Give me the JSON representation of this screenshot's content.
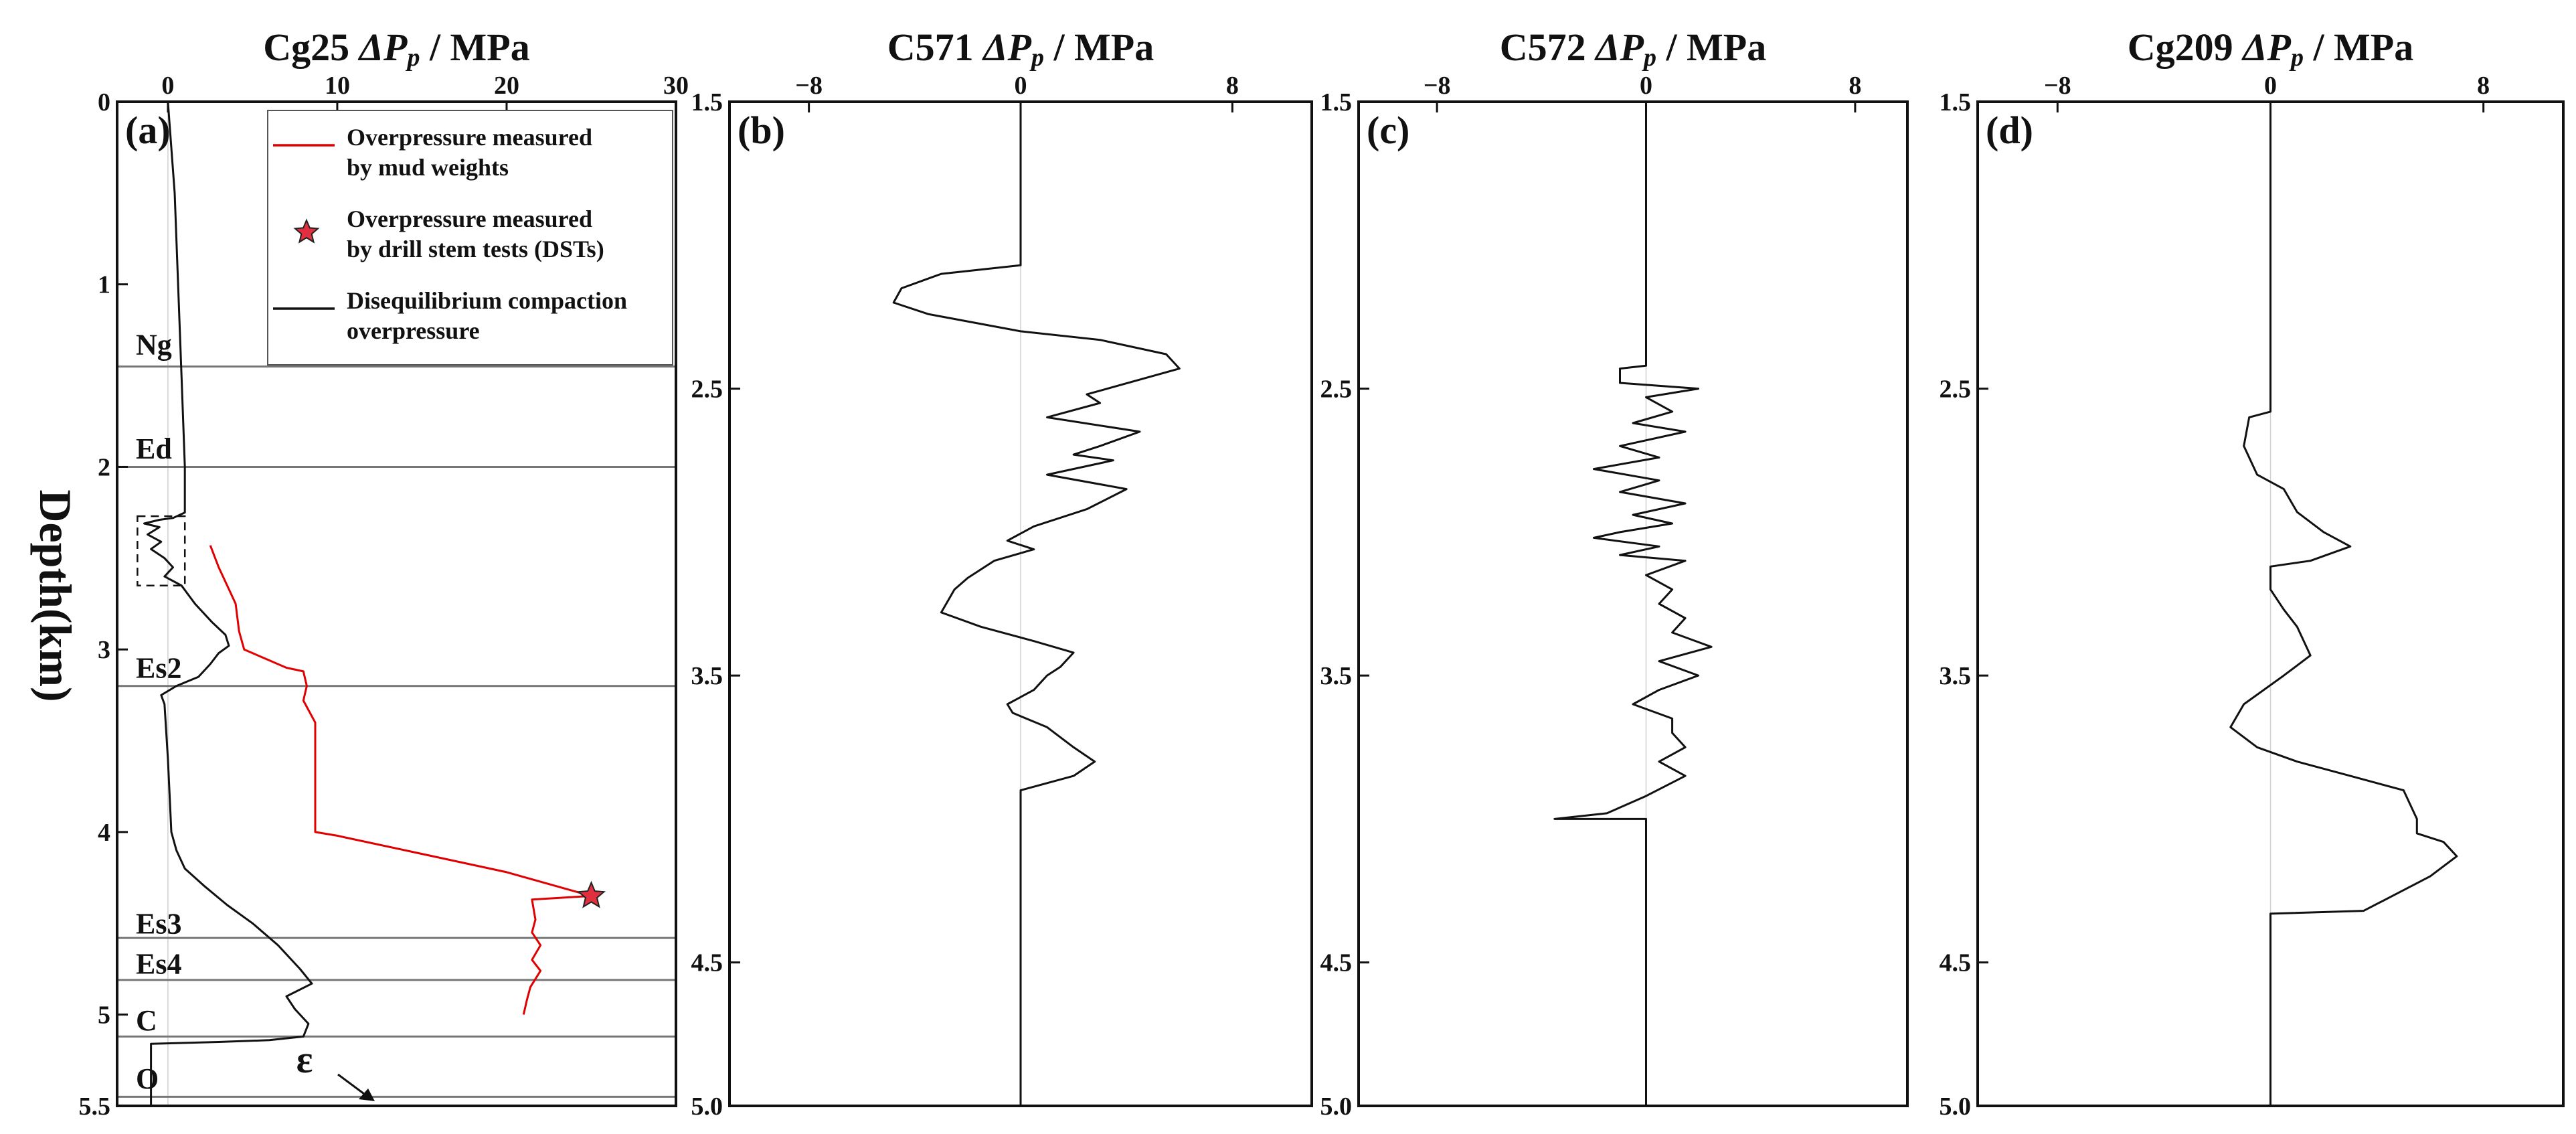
{
  "figure": {
    "ylabel_main": "Depth",
    "ylabel_unit": "(km)"
  },
  "chart_data": [
    {
      "type": "line",
      "panel_label": "(a)",
      "title_well": "Cg25",
      "title_symbol": "ΔP",
      "title_sub": "p",
      "title_unit": " / MPa",
      "x_ticks": [
        "0",
        "10",
        "20",
        "30"
      ],
      "xlim": [
        -3,
        30
      ],
      "y_ticks": [
        "0",
        "1",
        "2",
        "3",
        "4",
        "5",
        "5.5"
      ],
      "ylim": [
        0,
        5.5
      ],
      "legend": [
        {
          "label_line1": "Overpressure measured",
          "label_line2": "by mud weights",
          "color": "#e00000",
          "marker": "line"
        },
        {
          "label_line1": "Overpressure measured",
          "label_line2": "by drill stem tests (DSTs)",
          "color": "#e00000",
          "marker": "star"
        },
        {
          "label_line1": "Disequilibrium compaction",
          "label_line2": "overpressure",
          "color": "#111111",
          "marker": "line"
        }
      ],
      "formations": [
        {
          "name": "Ng",
          "boundary_depth": 1.45,
          "label_depth": 1.33
        },
        {
          "name": "Ed",
          "boundary_depth": 2.0,
          "label_depth": 1.9
        },
        {
          "name": "Es2",
          "boundary_depth": 3.2,
          "label_depth": 3.1
        },
        {
          "name": "Es3",
          "boundary_depth": 4.58,
          "label_depth": 4.5
        },
        {
          "name": "Es4",
          "boundary_depth": 4.81,
          "label_depth": 4.72
        },
        {
          "name": "C",
          "boundary_depth": 5.12,
          "label_depth": 5.03
        },
        {
          "name": "O",
          "boundary_depth": 5.45,
          "label_depth": 5.35
        }
      ],
      "annotation_symbol": "ε",
      "dashed_box": {
        "x_range": [
          -1.8,
          1.0
        ],
        "depth_range": [
          2.27,
          2.65
        ]
      },
      "series": [
        {
          "color": "#111111",
          "points": [
            [
              0,
              0
            ],
            [
              0.4,
              0.5
            ],
            [
              0.6,
              1.0
            ],
            [
              0.8,
              1.5
            ],
            [
              1.0,
              2.0
            ],
            [
              1.0,
              2.25
            ],
            [
              0.3,
              2.28
            ],
            [
              -0.5,
              2.29
            ],
            [
              -1.4,
              2.31
            ],
            [
              -0.5,
              2.33
            ],
            [
              -1.2,
              2.37
            ],
            [
              -0.4,
              2.41
            ],
            [
              -1.0,
              2.45
            ],
            [
              -0.2,
              2.5
            ],
            [
              0.3,
              2.55
            ],
            [
              -0.2,
              2.6
            ],
            [
              0.8,
              2.65
            ],
            [
              1.6,
              2.75
            ],
            [
              2.6,
              2.85
            ],
            [
              3.4,
              2.92
            ],
            [
              3.6,
              2.98
            ],
            [
              3.0,
              3.02
            ],
            [
              2.5,
              3.08
            ],
            [
              1.8,
              3.15
            ],
            [
              0.5,
              3.2
            ],
            [
              -0.4,
              3.25
            ],
            [
              -0.2,
              3.3
            ],
            [
              0,
              3.6
            ],
            [
              0.2,
              4.0
            ],
            [
              0.5,
              4.1
            ],
            [
              1.0,
              4.2
            ],
            [
              2.2,
              4.3
            ],
            [
              3.5,
              4.4
            ],
            [
              5.0,
              4.5
            ],
            [
              6.5,
              4.62
            ],
            [
              7.8,
              4.75
            ],
            [
              8.5,
              4.83
            ],
            [
              7.0,
              4.9
            ],
            [
              7.5,
              4.97
            ],
            [
              8.3,
              5.05
            ],
            [
              8.0,
              5.12
            ],
            [
              6.0,
              5.14
            ],
            [
              3.0,
              5.15
            ],
            [
              -1.0,
              5.16
            ],
            [
              -1.0,
              5.5
            ]
          ]
        },
        {
          "color": "#e00000",
          "points": [
            [
              2.5,
              2.43
            ],
            [
              3.0,
              2.55
            ],
            [
              3.5,
              2.65
            ],
            [
              4.0,
              2.75
            ],
            [
              4.2,
              2.9
            ],
            [
              4.5,
              3.0
            ],
            [
              7.0,
              3.1
            ],
            [
              8.0,
              3.12
            ],
            [
              8.2,
              3.2
            ],
            [
              8.0,
              3.28
            ],
            [
              8.7,
              3.4
            ],
            [
              8.7,
              3.7
            ],
            [
              8.7,
              4.0
            ],
            [
              10,
              4.02
            ],
            [
              15,
              4.12
            ],
            [
              20,
              4.22
            ],
            [
              25,
              4.35
            ],
            [
              21.5,
              4.37
            ],
            [
              21.7,
              4.48
            ],
            [
              21.5,
              4.55
            ],
            [
              22,
              4.62
            ],
            [
              21.5,
              4.7
            ],
            [
              22,
              4.76
            ],
            [
              21.4,
              4.85
            ],
            [
              21.2,
              4.92
            ],
            [
              21.0,
              5.0
            ]
          ]
        }
      ],
      "dst_points": [
        [
          25,
          4.35
        ]
      ]
    },
    {
      "type": "line",
      "panel_label": "(b)",
      "title_well": "C571",
      "title_symbol": "ΔP",
      "title_sub": "p",
      "title_unit": " / MPa",
      "x_ticks": [
        "−8",
        "0",
        "8"
      ],
      "xlim": [
        -11,
        11
      ],
      "y_ticks": [
        "1.5",
        "2.5",
        "3.5",
        "4.5",
        "5.0"
      ],
      "ylim": [
        1.5,
        5.0
      ],
      "series": [
        {
          "color": "#111111",
          "points": [
            [
              0,
              1.5
            ],
            [
              0,
              2.07
            ],
            [
              -3,
              2.1
            ],
            [
              -4.5,
              2.15
            ],
            [
              -4.8,
              2.2
            ],
            [
              -3.5,
              2.24
            ],
            [
              0,
              2.3
            ],
            [
              3.0,
              2.33
            ],
            [
              5.5,
              2.38
            ],
            [
              6.0,
              2.43
            ],
            [
              2.5,
              2.52
            ],
            [
              3.0,
              2.55
            ],
            [
              1.0,
              2.6
            ],
            [
              4.5,
              2.65
            ],
            [
              3.0,
              2.7
            ],
            [
              2.0,
              2.73
            ],
            [
              3.5,
              2.75
            ],
            [
              1.0,
              2.8
            ],
            [
              4.0,
              2.85
            ],
            [
              2.5,
              2.92
            ],
            [
              0.5,
              2.98
            ],
            [
              -0.5,
              3.03
            ],
            [
              0.5,
              3.06
            ],
            [
              -1.0,
              3.1
            ],
            [
              -2.0,
              3.16
            ],
            [
              -2.5,
              3.2
            ],
            [
              -3.0,
              3.28
            ],
            [
              -1.5,
              3.33
            ],
            [
              0.5,
              3.38
            ],
            [
              2.0,
              3.42
            ],
            [
              1.5,
              3.47
            ],
            [
              1.0,
              3.5
            ],
            [
              0.5,
              3.55
            ],
            [
              -0.5,
              3.6
            ],
            [
              -0.3,
              3.63
            ],
            [
              1.0,
              3.68
            ],
            [
              2.0,
              3.75
            ],
            [
              2.8,
              3.8
            ],
            [
              2.0,
              3.85
            ],
            [
              0,
              3.9
            ],
            [
              0,
              5.0
            ]
          ]
        }
      ]
    },
    {
      "type": "line",
      "panel_label": "(c)",
      "title_well": "C572",
      "title_symbol": "ΔP",
      "title_sub": "p",
      "title_unit": " / MPa",
      "x_ticks": [
        "−8",
        "0",
        "8"
      ],
      "xlim": [
        -11,
        10
      ],
      "y_ticks": [
        "1.5",
        "2.5",
        "3.5",
        "4.5",
        "5.0"
      ],
      "ylim": [
        1.5,
        5.0
      ],
      "series": [
        {
          "color": "#111111",
          "points": [
            [
              0,
              1.5
            ],
            [
              0,
              2.42
            ],
            [
              -1.0,
              2.43
            ],
            [
              -1.0,
              2.48
            ],
            [
              2.0,
              2.5
            ],
            [
              0,
              2.53
            ],
            [
              1.0,
              2.58
            ],
            [
              -0.5,
              2.62
            ],
            [
              1.5,
              2.65
            ],
            [
              -1.0,
              2.7
            ],
            [
              0.5,
              2.74
            ],
            [
              -2.0,
              2.78
            ],
            [
              0.5,
              2.82
            ],
            [
              -1.0,
              2.86
            ],
            [
              1.5,
              2.9
            ],
            [
              -0.5,
              2.94
            ],
            [
              1.0,
              2.97
            ],
            [
              -1.0,
              3.0
            ],
            [
              -2.0,
              3.02
            ],
            [
              0.5,
              3.05
            ],
            [
              -1.0,
              3.08
            ],
            [
              1.5,
              3.1
            ],
            [
              0,
              3.15
            ],
            [
              1.0,
              3.2
            ],
            [
              0.5,
              3.25
            ],
            [
              1.5,
              3.3
            ],
            [
              1.0,
              3.35
            ],
            [
              2.5,
              3.4
            ],
            [
              0.5,
              3.45
            ],
            [
              2.0,
              3.5
            ],
            [
              0.5,
              3.55
            ],
            [
              -0.5,
              3.6
            ],
            [
              1.0,
              3.65
            ],
            [
              1.0,
              3.7
            ],
            [
              1.5,
              3.75
            ],
            [
              0.5,
              3.8
            ],
            [
              1.5,
              3.85
            ],
            [
              0,
              3.92
            ],
            [
              -1.0,
              3.96
            ],
            [
              -1.5,
              3.98
            ],
            [
              -3.5,
              4.0
            ],
            [
              0,
              4.0
            ],
            [
              0,
              5.0
            ]
          ]
        }
      ]
    },
    {
      "type": "line",
      "panel_label": "(d)",
      "title_well": "Cg209",
      "title_symbol": "ΔP",
      "title_sub": "p",
      "title_unit": " / MPa",
      "x_ticks": [
        "−8",
        "0",
        "8"
      ],
      "xlim": [
        -11,
        11
      ],
      "y_ticks": [
        "1.5",
        "2.5",
        "3.5",
        "4.5",
        "5.0"
      ],
      "ylim": [
        1.5,
        5.0
      ],
      "series": [
        {
          "color": "#111111",
          "points": [
            [
              0,
              1.5
            ],
            [
              0,
              2.58
            ],
            [
              -0.8,
              2.6
            ],
            [
              -1.0,
              2.7
            ],
            [
              -0.5,
              2.8
            ],
            [
              0.5,
              2.85
            ],
            [
              1.0,
              2.93
            ],
            [
              2.0,
              3.0
            ],
            [
              3.0,
              3.05
            ],
            [
              1.5,
              3.1
            ],
            [
              0,
              3.12
            ],
            [
              0,
              3.2
            ],
            [
              0.5,
              3.27
            ],
            [
              1.0,
              3.33
            ],
            [
              1.5,
              3.43
            ],
            [
              0.5,
              3.5
            ],
            [
              -1.0,
              3.6
            ],
            [
              -1.5,
              3.68
            ],
            [
              -0.5,
              3.75
            ],
            [
              1.0,
              3.8
            ],
            [
              3.0,
              3.85
            ],
            [
              5.0,
              3.9
            ],
            [
              5.5,
              4.0
            ],
            [
              5.5,
              4.05
            ],
            [
              6.5,
              4.08
            ],
            [
              7.0,
              4.13
            ],
            [
              6.0,
              4.2
            ],
            [
              3.5,
              4.32
            ],
            [
              0,
              4.33
            ],
            [
              0,
              5.0
            ]
          ]
        }
      ]
    }
  ]
}
